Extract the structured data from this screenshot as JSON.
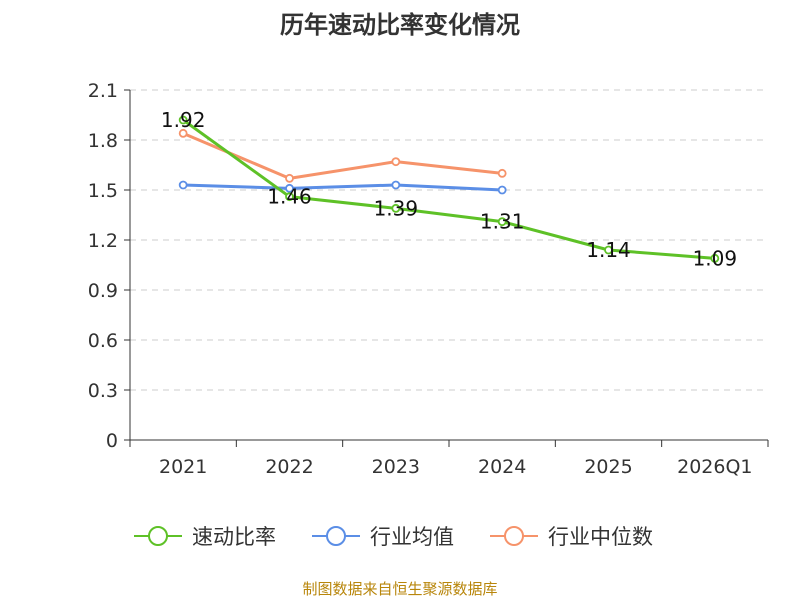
{
  "chart_data": {
    "type": "line",
    "title": "历年速动比率变化情况",
    "categories": [
      "2021",
      "2022",
      "2023",
      "2024",
      "2025",
      "2026Q1"
    ],
    "ylim": [
      0,
      2.1
    ],
    "yticks": [
      "0",
      "0.3",
      "0.6",
      "0.9",
      "1.2",
      "1.5",
      "1.8",
      "2.1"
    ],
    "grid": true,
    "legend_position": "bottom",
    "series": [
      {
        "name": "速动比率",
        "color": "#5ec127",
        "values": [
          1.92,
          1.46,
          1.39,
          1.31,
          1.14,
          1.09
        ],
        "labels": [
          "1.92",
          "1.46",
          "1.39",
          "1.31",
          "1.14",
          "1.09"
        ],
        "show_labels": true
      },
      {
        "name": "行业均值",
        "color": "#5b8ee6",
        "values": [
          1.53,
          1.51,
          1.53,
          1.5,
          null,
          null
        ],
        "show_labels": false
      },
      {
        "name": "行业中位数",
        "color": "#f6936a",
        "values": [
          1.84,
          1.57,
          1.67,
          1.6,
          null,
          null
        ],
        "show_labels": false
      }
    ]
  },
  "footer": "制图数据来自恒生聚源数据库"
}
